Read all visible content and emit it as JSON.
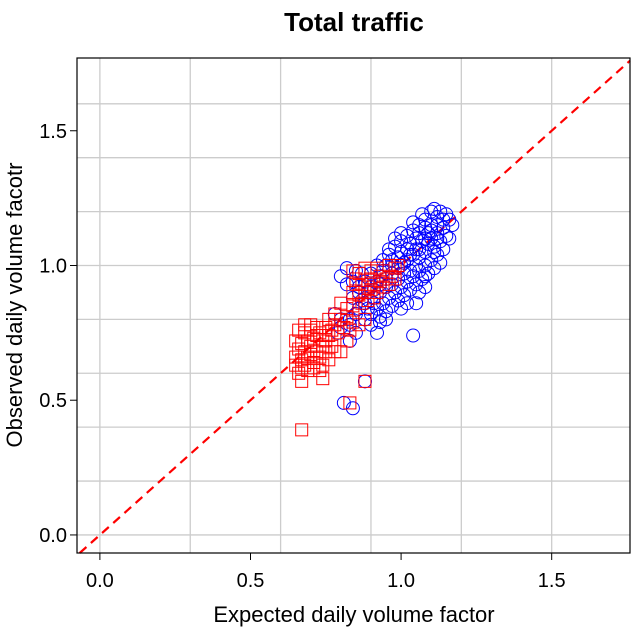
{
  "chart_data": {
    "type": "scatter",
    "title": "Total traffic",
    "xlabel": "Expected daily volume factor",
    "ylabel": "Observed daily volume facotr",
    "xlim": [
      -0.076,
      1.76
    ],
    "ylim": [
      -0.067,
      1.77
    ],
    "xticks": [
      0.0,
      0.5,
      1.0,
      1.5
    ],
    "xtick_labels": [
      "0.0",
      "0.5",
      "1.0",
      "1.5"
    ],
    "yticks": [
      0.0,
      0.5,
      1.0,
      1.5
    ],
    "ytick_labels": [
      "0.0",
      "0.5",
      "1.0",
      "1.5"
    ],
    "x_grid": [
      0.0,
      0.3,
      0.6,
      0.9,
      1.2,
      1.5
    ],
    "y_grid": [
      0.0,
      0.2,
      0.4,
      0.6,
      0.8,
      1.0,
      1.2,
      1.4,
      1.6
    ],
    "grid": true,
    "reference_line": {
      "type": "y=x",
      "style": "dashed",
      "color": "#ff0000"
    },
    "series": [
      {
        "marker": "circle-open",
        "color": "#0000ff",
        "points": [
          [
            0.93,
            0.96
          ],
          [
            0.95,
            1.0
          ],
          [
            0.97,
            1.02
          ],
          [
            0.99,
            1.03
          ],
          [
            1.0,
            1.05
          ],
          [
            1.02,
            1.06
          ],
          [
            1.03,
            1.08
          ],
          [
            1.05,
            1.1
          ],
          [
            1.06,
            1.12
          ],
          [
            1.08,
            1.14
          ],
          [
            1.1,
            1.15
          ],
          [
            1.12,
            1.18
          ],
          [
            1.13,
            1.2
          ],
          [
            1.15,
            1.19
          ],
          [
            1.16,
            1.17
          ],
          [
            1.14,
            1.14
          ],
          [
            1.12,
            1.12
          ],
          [
            1.1,
            1.1
          ],
          [
            1.09,
            1.08
          ],
          [
            1.08,
            1.05
          ],
          [
            1.06,
            1.03
          ],
          [
            1.05,
            1.0
          ],
          [
            1.03,
            0.98
          ],
          [
            1.01,
            0.97
          ],
          [
            0.99,
            0.95
          ],
          [
            0.97,
            0.93
          ],
          [
            0.95,
            0.92
          ],
          [
            0.93,
            0.9
          ],
          [
            0.91,
            0.88
          ],
          [
            0.9,
            0.92
          ],
          [
            0.92,
            0.94
          ],
          [
            0.94,
            0.98
          ],
          [
            0.96,
            1.04
          ],
          [
            0.98,
            1.07
          ],
          [
            1.0,
            1.09
          ],
          [
            1.02,
            1.11
          ],
          [
            1.04,
            1.13
          ],
          [
            1.06,
            1.15
          ],
          [
            1.08,
            1.17
          ],
          [
            1.1,
            1.2
          ],
          [
            1.09,
            1.12
          ],
          [
            1.07,
            1.09
          ],
          [
            1.05,
            1.06
          ],
          [
            1.03,
            1.04
          ],
          [
            1.01,
            1.01
          ],
          [
            0.99,
            0.99
          ],
          [
            0.97,
            0.97
          ],
          [
            0.95,
            0.95
          ],
          [
            0.93,
            0.93
          ],
          [
            0.91,
            0.91
          ],
          [
            1.11,
            1.07
          ],
          [
            1.13,
            1.09
          ],
          [
            1.15,
            1.11
          ],
          [
            1.14,
            1.06
          ],
          [
            1.12,
            1.04
          ],
          [
            1.1,
            1.02
          ],
          [
            1.08,
            1.0
          ],
          [
            1.06,
            0.98
          ],
          [
            1.04,
            0.96
          ],
          [
            1.02,
            0.94
          ],
          [
            1.0,
            0.92
          ],
          [
            0.98,
            0.9
          ],
          [
            0.96,
            0.88
          ],
          [
            0.94,
            0.86
          ],
          [
            0.92,
            0.84
          ],
          [
            0.9,
            0.82
          ],
          [
            0.88,
            0.86
          ],
          [
            0.86,
            0.9
          ],
          [
            0.88,
            0.94
          ],
          [
            0.9,
            0.97
          ],
          [
            0.92,
            1.0
          ],
          [
            0.94,
            1.02
          ],
          [
            0.96,
            1.06
          ],
          [
            0.98,
            1.1
          ],
          [
            1.0,
            1.12
          ],
          [
            1.04,
            1.16
          ],
          [
            1.07,
            1.19
          ],
          [
            1.11,
            1.21
          ],
          [
            1.17,
            1.15
          ],
          [
            1.16,
            1.1
          ],
          [
            1.13,
            1.01
          ],
          [
            1.11,
            0.99
          ],
          [
            1.09,
            0.97
          ],
          [
            1.07,
            0.95
          ],
          [
            1.05,
            0.93
          ],
          [
            1.03,
            0.91
          ],
          [
            1.01,
            0.89
          ],
          [
            0.99,
            0.87
          ],
          [
            0.97,
            0.85
          ],
          [
            0.95,
            0.83
          ],
          [
            0.93,
            0.81
          ],
          [
            1.0,
            0.84
          ],
          [
            1.02,
            0.86
          ],
          [
            1.06,
            0.9
          ],
          [
            1.08,
            0.92
          ],
          [
            1.05,
            0.86
          ],
          [
            1.08,
            0.96
          ],
          [
            0.87,
            0.97
          ],
          [
            0.85,
            0.98
          ],
          [
            0.82,
            0.99
          ],
          [
            0.8,
            0.96
          ],
          [
            0.82,
            0.93
          ],
          [
            0.84,
            0.94
          ],
          [
            0.86,
            0.92
          ],
          [
            0.84,
            0.88
          ],
          [
            0.86,
            0.84
          ],
          [
            0.88,
            0.8
          ],
          [
            0.9,
            0.78
          ],
          [
            0.93,
            0.79
          ],
          [
            0.95,
            0.8
          ],
          [
            0.89,
            0.84
          ],
          [
            0.87,
            0.87
          ],
          [
            0.91,
            0.86
          ],
          [
            0.89,
            0.9
          ],
          [
            0.85,
            0.82
          ],
          [
            0.83,
            0.8
          ],
          [
            0.8,
            0.8
          ],
          [
            0.78,
            0.82
          ],
          [
            0.8,
            0.77
          ],
          [
            0.83,
            0.78
          ],
          [
            0.85,
            0.75
          ],
          [
            0.83,
            0.72
          ],
          [
            0.79,
            0.75
          ],
          [
            0.92,
            0.75
          ],
          [
            1.04,
            0.74
          ],
          [
            0.88,
            0.57
          ],
          [
            0.81,
            0.49
          ],
          [
            0.84,
            0.47
          ],
          [
            0.97,
            1.0
          ],
          [
            1.0,
            1.0
          ],
          [
            1.02,
            1.02
          ],
          [
            1.04,
            1.04
          ],
          [
            1.06,
            1.06
          ],
          [
            1.08,
            1.1
          ],
          [
            1.1,
            1.13
          ],
          [
            1.12,
            1.15
          ],
          [
            1.14,
            1.17
          ],
          [
            1.12,
            1.1
          ],
          [
            1.11,
            1.05
          ]
        ]
      },
      {
        "marker": "square-open",
        "color": "#ff0000",
        "points": [
          [
            0.84,
            0.98
          ],
          [
            0.86,
            0.97
          ],
          [
            0.88,
            0.99
          ],
          [
            0.9,
            0.98
          ],
          [
            0.92,
            0.99
          ],
          [
            0.94,
            0.98
          ],
          [
            0.96,
            1.0
          ],
          [
            0.98,
            0.99
          ],
          [
            0.99,
            1.0
          ],
          [
            0.97,
            0.96
          ],
          [
            0.95,
            0.95
          ],
          [
            0.93,
            0.94
          ],
          [
            0.91,
            0.93
          ],
          [
            0.89,
            0.92
          ],
          [
            0.87,
            0.93
          ],
          [
            0.85,
            0.93
          ],
          [
            0.84,
            0.9
          ],
          [
            0.86,
            0.89
          ],
          [
            0.88,
            0.9
          ],
          [
            0.9,
            0.91
          ],
          [
            0.92,
            0.9
          ],
          [
            0.94,
            0.92
          ],
          [
            0.96,
            0.93
          ],
          [
            0.98,
            0.95
          ],
          [
            0.85,
            0.95
          ],
          [
            0.9,
            0.95
          ],
          [
            0.93,
            0.96
          ],
          [
            0.87,
            0.86
          ],
          [
            0.89,
            0.87
          ],
          [
            0.91,
            0.88
          ],
          [
            0.8,
            0.86
          ],
          [
            0.82,
            0.84
          ],
          [
            0.84,
            0.85
          ],
          [
            0.78,
            0.82
          ],
          [
            0.8,
            0.8
          ],
          [
            0.82,
            0.81
          ],
          [
            0.84,
            0.79
          ],
          [
            0.86,
            0.78
          ],
          [
            0.76,
            0.8
          ],
          [
            0.78,
            0.78
          ],
          [
            0.75,
            0.77
          ],
          [
            0.77,
            0.76
          ],
          [
            0.79,
            0.75
          ],
          [
            0.81,
            0.77
          ],
          [
            0.83,
            0.76
          ],
          [
            0.88,
            0.8
          ],
          [
            0.82,
            0.72
          ],
          [
            0.76,
            0.74
          ],
          [
            0.73,
            0.75
          ],
          [
            0.74,
            0.72
          ],
          [
            0.72,
            0.77
          ],
          [
            0.66,
            0.76
          ],
          [
            0.68,
            0.75
          ],
          [
            0.7,
            0.76
          ],
          [
            0.72,
            0.74
          ],
          [
            0.74,
            0.7
          ],
          [
            0.69,
            0.72
          ],
          [
            0.67,
            0.71
          ],
          [
            0.65,
            0.72
          ],
          [
            0.66,
            0.69
          ],
          [
            0.68,
            0.68
          ],
          [
            0.7,
            0.7
          ],
          [
            0.72,
            0.68
          ],
          [
            0.71,
            0.73
          ],
          [
            0.65,
            0.66
          ],
          [
            0.67,
            0.65
          ],
          [
            0.69,
            0.66
          ],
          [
            0.71,
            0.64
          ],
          [
            0.73,
            0.66
          ],
          [
            0.75,
            0.68
          ],
          [
            0.65,
            0.63
          ],
          [
            0.67,
            0.62
          ],
          [
            0.69,
            0.61
          ],
          [
            0.71,
            0.62
          ],
          [
            0.66,
            0.6
          ],
          [
            0.68,
            0.63
          ],
          [
            0.7,
            0.67
          ],
          [
            0.78,
            0.68
          ],
          [
            0.8,
            0.68
          ],
          [
            0.76,
            0.65
          ],
          [
            0.74,
            0.63
          ],
          [
            0.73,
            0.61
          ],
          [
            0.67,
            0.57
          ],
          [
            0.74,
            0.58
          ],
          [
            0.88,
            0.57
          ],
          [
            0.83,
            0.49
          ],
          [
            0.67,
            0.39
          ],
          [
            0.75,
            0.72
          ],
          [
            0.77,
            0.7
          ],
          [
            0.7,
            0.78
          ],
          [
            0.68,
            0.78
          ]
        ]
      }
    ]
  }
}
